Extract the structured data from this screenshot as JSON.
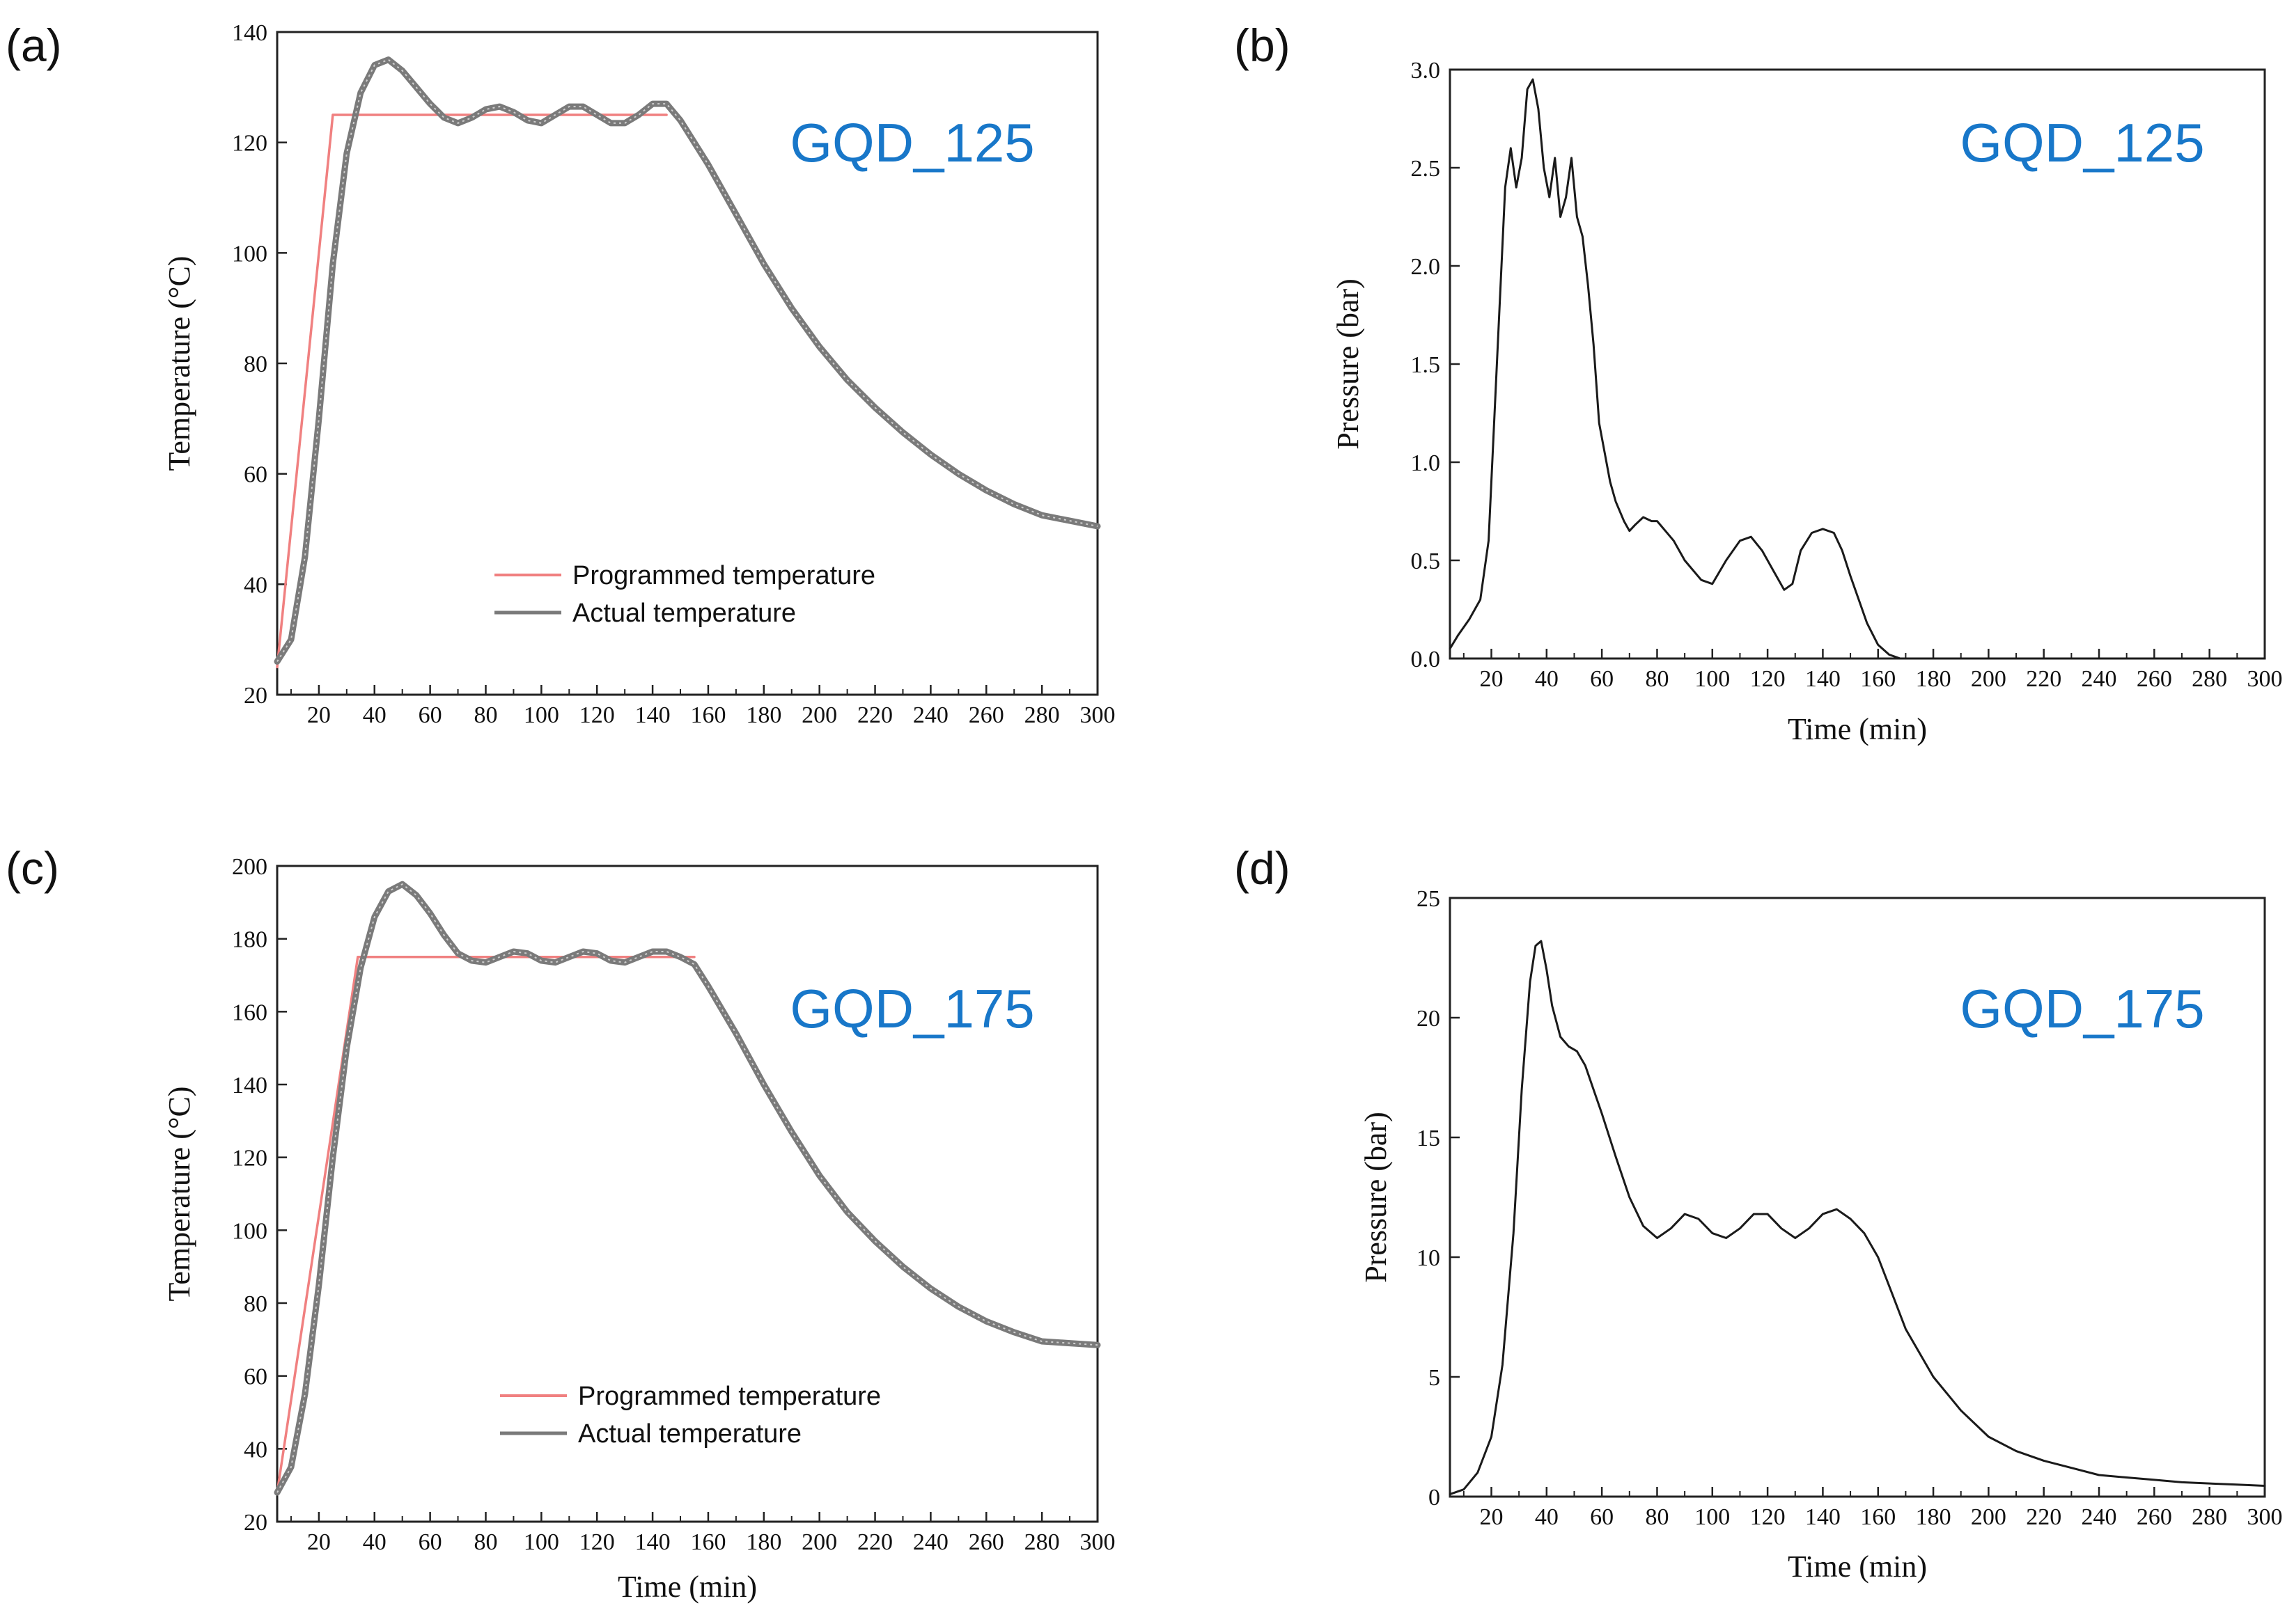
{
  "colors": {
    "programmed": "#f08080",
    "actual": "#7a7a7a",
    "pressure": "#1a1a1a",
    "sample_label": "#1877c9"
  },
  "chart_data": [
    {
      "id": "a",
      "type": "line",
      "panel_label": "(a)",
      "sample_label": "GQD_125",
      "xlabel": "",
      "ylabel": "Temperature (°C)",
      "xlim": [
        5,
        300
      ],
      "ylim": [
        20,
        140
      ],
      "xticks": [
        20,
        40,
        60,
        80,
        100,
        120,
        140,
        160,
        180,
        200,
        220,
        240,
        260,
        280,
        300
      ],
      "yticks": [
        20,
        40,
        60,
        80,
        100,
        120,
        140
      ],
      "legend": "lower-center",
      "series": [
        {
          "name": "Programmed temperature",
          "color": "#f08080",
          "x": [
            5,
            25,
            145
          ],
          "y": [
            25,
            125,
            125
          ]
        },
        {
          "name": "Actual temperature",
          "color": "#7a7a7a",
          "x": [
            5,
            10,
            15,
            20,
            25,
            30,
            35,
            40,
            45,
            50,
            55,
            60,
            65,
            70,
            75,
            80,
            85,
            90,
            95,
            100,
            105,
            110,
            115,
            120,
            125,
            130,
            135,
            140,
            145,
            150,
            160,
            170,
            180,
            190,
            200,
            210,
            220,
            230,
            240,
            250,
            260,
            270,
            280,
            290,
            300
          ],
          "y": [
            26,
            30,
            45,
            70,
            98,
            118,
            129,
            134,
            135,
            133,
            130,
            127,
            124.5,
            123.5,
            124.5,
            126,
            126.5,
            125.5,
            124,
            123.5,
            125,
            126.5,
            126.5,
            125,
            123.5,
            123.5,
            125,
            127,
            127,
            124,
            116,
            107,
            98,
            90,
            83,
            77,
            72,
            67.5,
            63.5,
            60,
            57,
            54.5,
            52.5,
            51.5,
            50.5
          ]
        }
      ]
    },
    {
      "id": "b",
      "type": "line",
      "panel_label": "(b)",
      "sample_label": "GQD_125",
      "xlabel": "Time (min)",
      "ylabel": "Pressure (bar)",
      "xlim": [
        5,
        300
      ],
      "ylim": [
        0,
        3.0
      ],
      "xticks": [
        20,
        40,
        60,
        80,
        100,
        120,
        140,
        160,
        180,
        200,
        220,
        240,
        260,
        280,
        300
      ],
      "yticks": [
        0.0,
        0.5,
        1.0,
        1.5,
        2.0,
        2.5,
        3.0
      ],
      "yticklabels": [
        "0.0",
        "0.5",
        "1.0",
        "1.5",
        "2.0",
        "2.5",
        "3.0"
      ],
      "series": [
        {
          "color": "#1a1a1a",
          "x": [
            5,
            8,
            12,
            16,
            19,
            22,
            25,
            27,
            29,
            31,
            33,
            35,
            37,
            39,
            41,
            43,
            45,
            47,
            49,
            51,
            53,
            55,
            57,
            59,
            61,
            63,
            65,
            68,
            70,
            72,
            75,
            78,
            80,
            83,
            86,
            90,
            93,
            96,
            100,
            105,
            110,
            114,
            118,
            122,
            126,
            129,
            132,
            136,
            140,
            144,
            147,
            150,
            153,
            156,
            160,
            164,
            168,
            175,
            200,
            250,
            300
          ],
          "y": [
            0.05,
            0.12,
            0.2,
            0.3,
            0.6,
            1.5,
            2.4,
            2.6,
            2.4,
            2.55,
            2.9,
            2.95,
            2.8,
            2.5,
            2.35,
            2.55,
            2.25,
            2.35,
            2.55,
            2.25,
            2.15,
            1.9,
            1.6,
            1.2,
            1.05,
            0.9,
            0.8,
            0.7,
            0.65,
            0.68,
            0.72,
            0.7,
            0.7,
            0.65,
            0.6,
            0.5,
            0.45,
            0.4,
            0.38,
            0.5,
            0.6,
            0.62,
            0.55,
            0.45,
            0.35,
            0.38,
            0.55,
            0.64,
            0.66,
            0.64,
            0.55,
            0.42,
            0.3,
            0.18,
            0.07,
            0.02,
            0.0,
            0.0,
            0.0,
            0.0,
            0.0
          ]
        }
      ]
    },
    {
      "id": "c",
      "type": "line",
      "panel_label": "(c)",
      "sample_label": "GQD_175",
      "xlabel": "Time (min)",
      "ylabel": "Temperature (°C)",
      "xlim": [
        5,
        300
      ],
      "ylim": [
        20,
        200
      ],
      "xticks": [
        20,
        40,
        60,
        80,
        100,
        120,
        140,
        160,
        180,
        200,
        220,
        240,
        260,
        280,
        300
      ],
      "yticks": [
        20,
        40,
        60,
        80,
        100,
        120,
        140,
        160,
        180,
        200
      ],
      "legend": "lower-center",
      "series": [
        {
          "name": "Programmed temperature",
          "color": "#f08080",
          "x": [
            5,
            34,
            155
          ],
          "y": [
            28,
            175,
            175
          ]
        },
        {
          "name": "Actual temperature",
          "color": "#7a7a7a",
          "x": [
            5,
            10,
            15,
            20,
            25,
            30,
            35,
            40,
            45,
            50,
            55,
            60,
            65,
            70,
            75,
            80,
            85,
            90,
            95,
            100,
            105,
            110,
            115,
            120,
            125,
            130,
            135,
            140,
            145,
            150,
            155,
            160,
            170,
            180,
            190,
            200,
            210,
            220,
            230,
            240,
            250,
            260,
            270,
            280,
            290,
            300
          ],
          "y": [
            28,
            35,
            55,
            85,
            120,
            150,
            172,
            186,
            193,
            195,
            192,
            187,
            181,
            176,
            174,
            173.5,
            175,
            176.5,
            176,
            174,
            173.5,
            175,
            176.5,
            176,
            174,
            173.5,
            175,
            176.5,
            176.5,
            175,
            173,
            167,
            154,
            140,
            127,
            115,
            105,
            97,
            90,
            84,
            79,
            75,
            72,
            69.5,
            69,
            68.5
          ]
        }
      ]
    },
    {
      "id": "d",
      "type": "line",
      "panel_label": "(d)",
      "sample_label": "GQD_175",
      "xlabel": "Time (min)",
      "ylabel": "Pressure (bar)",
      "xlim": [
        5,
        300
      ],
      "ylim": [
        0,
        25
      ],
      "xticks": [
        20,
        40,
        60,
        80,
        100,
        120,
        140,
        160,
        180,
        200,
        220,
        240,
        260,
        280,
        300
      ],
      "yticks": [
        0,
        5,
        10,
        15,
        20,
        25
      ],
      "series": [
        {
          "color": "#1a1a1a",
          "x": [
            5,
            10,
            15,
            20,
            24,
            28,
            31,
            34,
            36,
            38,
            40,
            42,
            45,
            48,
            51,
            54,
            57,
            60,
            65,
            70,
            75,
            80,
            85,
            90,
            95,
            100,
            105,
            110,
            115,
            120,
            125,
            130,
            135,
            140,
            145,
            150,
            155,
            160,
            165,
            170,
            180,
            190,
            200,
            210,
            220,
            230,
            240,
            250,
            260,
            270,
            280,
            290,
            300
          ],
          "y": [
            0.1,
            0.3,
            1.0,
            2.5,
            5.5,
            11,
            17,
            21.5,
            23,
            23.2,
            22,
            20.5,
            19.2,
            18.8,
            18.6,
            18,
            17,
            16,
            14.2,
            12.5,
            11.3,
            10.8,
            11.2,
            11.8,
            11.6,
            11,
            10.8,
            11.2,
            11.8,
            11.8,
            11.2,
            10.8,
            11.2,
            11.8,
            12,
            11.6,
            11,
            10,
            8.5,
            7,
            5,
            3.6,
            2.5,
            1.9,
            1.5,
            1.2,
            0.9,
            0.8,
            0.7,
            0.6,
            0.55,
            0.5,
            0.45
          ]
        }
      ]
    }
  ]
}
